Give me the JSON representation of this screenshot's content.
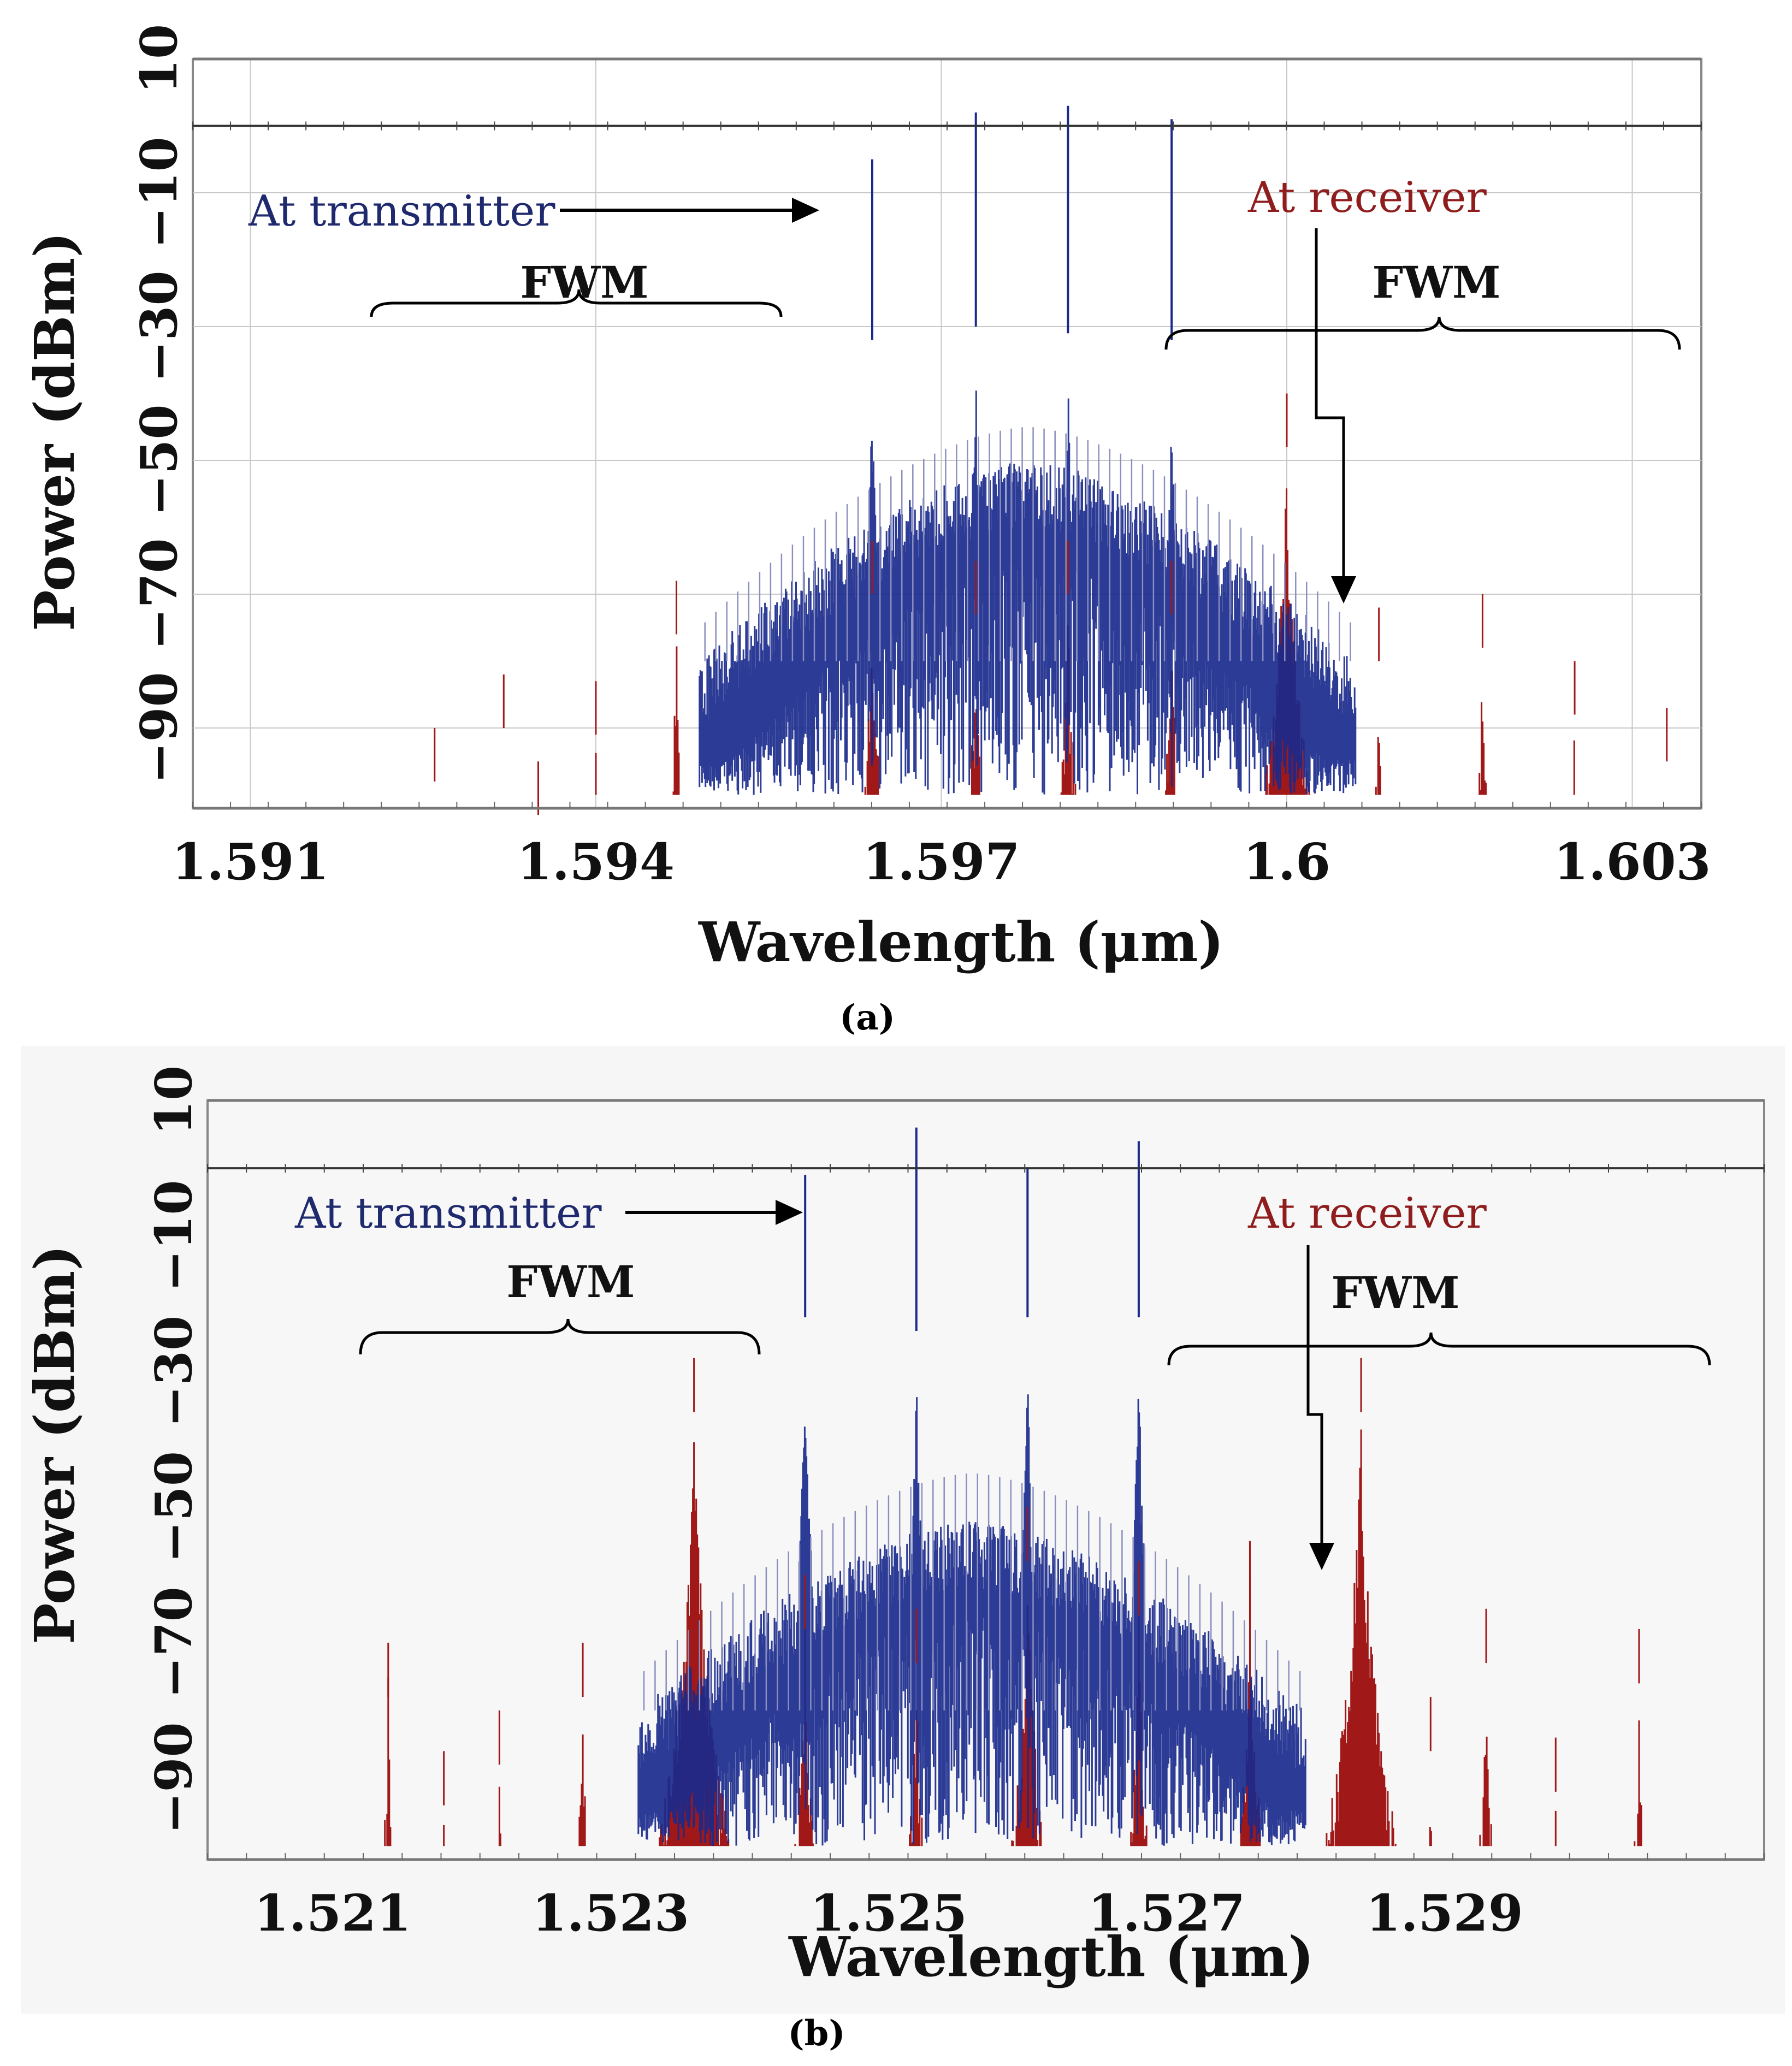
{
  "figure": {
    "background_b": "#f6f6f6"
  },
  "chart_data": [
    {
      "panel": "(a)",
      "type": "line",
      "xlabel": "Wavelength (μm)",
      "ylabel": "Power (dBm)",
      "xlim": [
        1.5905,
        1.6036
      ],
      "ylim": [
        -102,
        10
      ],
      "x_ticks": [
        "1.591",
        "1.594",
        "1.597",
        "1.6",
        "1.603"
      ],
      "x_tick_values": [
        1.591,
        1.594,
        1.597,
        1.6,
        1.603
      ],
      "y_ticks": [
        "10",
        "−10",
        "−30",
        "−50",
        "−70",
        "−90"
      ],
      "y_tick_values": [
        10,
        -10,
        -30,
        -50,
        -70,
        -90
      ],
      "reference_line_dbm": 0,
      "grid": true,
      "annotations": {
        "transmitter": "At transmitter",
        "receiver": "At receiver",
        "fwm_left": "FWM",
        "fwm_right": "FWM"
      },
      "series": [
        {
          "name": "At transmitter",
          "color": "#1a2a8c",
          "x_range": [
            1.5949,
            1.6006
          ],
          "floor_dbm": -100,
          "pedestal_peak_dbm": -50,
          "carriers": [
            {
              "x": 1.5964,
              "peak": -5,
              "shoulder": -32
            },
            {
              "x": 1.5973,
              "peak": 2,
              "shoulder": -30
            },
            {
              "x": 1.5981,
              "peak": 3,
              "shoulder": -31
            },
            {
              "x": 1.599,
              "peak": 1,
              "shoulder": -32
            }
          ]
        },
        {
          "name": "At receiver",
          "color": "#a01818",
          "x_range": [
            1.5924,
            1.6036
          ],
          "floor_dbm": -100,
          "peaks": [
            {
              "x": 1.5926,
              "peak": -90
            },
            {
              "x": 1.5932,
              "peak": -82
            },
            {
              "x": 1.5935,
              "peak": -95
            },
            {
              "x": 1.594,
              "peak": -83
            },
            {
              "x": 1.5947,
              "peak": -68
            },
            {
              "x": 1.5964,
              "peak": -62
            },
            {
              "x": 1.5973,
              "peak": -65
            },
            {
              "x": 1.5981,
              "peak": -62
            },
            {
              "x": 1.599,
              "peak": -65
            },
            {
              "x": 1.6,
              "peak": -40
            },
            {
              "x": 1.6008,
              "peak": -72
            },
            {
              "x": 1.6017,
              "peak": -70
            },
            {
              "x": 1.6025,
              "peak": -80
            },
            {
              "x": 1.6033,
              "peak": -87
            }
          ]
        }
      ]
    },
    {
      "panel": "(b)",
      "type": "line",
      "xlabel": "Wavelength (μm)",
      "ylabel": "Power (dBm)",
      "xlim": [
        1.5201,
        1.5313
      ],
      "ylim": [
        -102,
        10
      ],
      "x_ticks": [
        "1.521",
        "1.523",
        "1.525",
        "1.527",
        "1.529"
      ],
      "x_tick_values": [
        1.521,
        1.523,
        1.525,
        1.527,
        1.529
      ],
      "y_ticks": [
        "10",
        "−10",
        "−30",
        "−50",
        "−70",
        "−90"
      ],
      "y_tick_values": [
        10,
        -10,
        -30,
        -50,
        -70,
        -90
      ],
      "reference_line_dbm": 0,
      "grid": false,
      "annotations": {
        "transmitter": "At transmitter",
        "receiver": "At receiver",
        "fwm_left": "FWM",
        "fwm_right": "FWM"
      },
      "series": [
        {
          "name": "At transmitter",
          "color": "#1a2a8c",
          "x_range": [
            1.5232,
            1.528
          ],
          "floor_dbm": -100,
          "pedestal_peak_dbm": -52,
          "carriers": [
            {
              "x": 1.5244,
              "peak": -1,
              "shoulder": -22
            },
            {
              "x": 1.5252,
              "peak": 6,
              "shoulder": -24
            },
            {
              "x": 1.526,
              "peak": 0,
              "shoulder": -22
            },
            {
              "x": 1.5268,
              "peak": 4,
              "shoulder": -22
            }
          ]
        },
        {
          "name": "At receiver",
          "color": "#a01818",
          "x_range": [
            1.5212,
            1.5306
          ],
          "floor_dbm": -100,
          "peaks": [
            {
              "x": 1.5214,
              "peak": -70
            },
            {
              "x": 1.5218,
              "peak": -86
            },
            {
              "x": 1.5222,
              "peak": -80
            },
            {
              "x": 1.5228,
              "peak": -70
            },
            {
              "x": 1.5236,
              "peak": -28
            },
            {
              "x": 1.5244,
              "peak": -60
            },
            {
              "x": 1.5252,
              "peak": -65
            },
            {
              "x": 1.526,
              "peak": -50
            },
            {
              "x": 1.5268,
              "peak": -58
            },
            {
              "x": 1.5276,
              "peak": -55
            },
            {
              "x": 1.5284,
              "peak": -28
            },
            {
              "x": 1.5289,
              "peak": -78
            },
            {
              "x": 1.5293,
              "peak": -65
            },
            {
              "x": 1.5298,
              "peak": -84
            },
            {
              "x": 1.5304,
              "peak": -68
            }
          ]
        }
      ]
    }
  ]
}
